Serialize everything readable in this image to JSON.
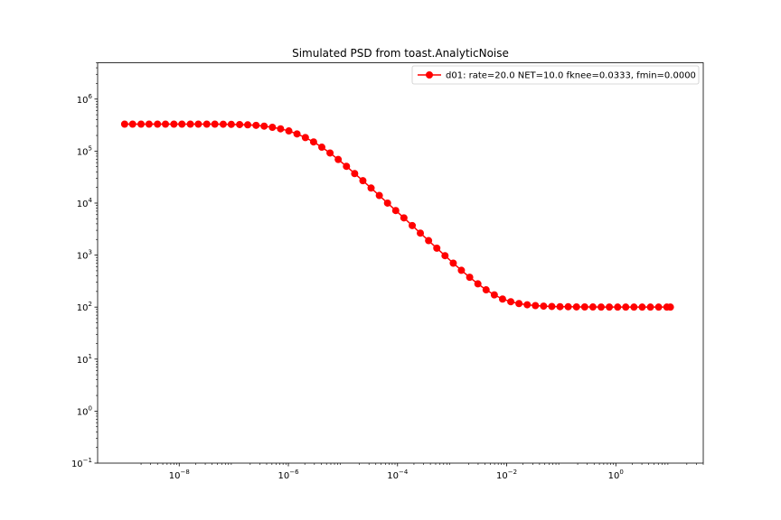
{
  "chart_data": {
    "type": "line",
    "title": "Simulated PSD from toast.AnalyticNoise",
    "xlabel": "",
    "ylabel": "",
    "xscale": "log",
    "yscale": "log",
    "xlim": [
      3.2e-10,
      40
    ],
    "ylim": [
      0.1,
      5000000
    ],
    "x_ticks": [
      {
        "value": 1e-08,
        "base": "10",
        "exp": "−8"
      },
      {
        "value": 1e-06,
        "base": "10",
        "exp": "−6"
      },
      {
        "value": 0.0001,
        "base": "10",
        "exp": "−4"
      },
      {
        "value": 0.01,
        "base": "10",
        "exp": "−2"
      },
      {
        "value": 1,
        "base": "10",
        "exp": "0"
      }
    ],
    "y_ticks": [
      {
        "value": 0.1,
        "base": "10",
        "exp": "−1"
      },
      {
        "value": 1,
        "base": "10",
        "exp": "0"
      },
      {
        "value": 10,
        "base": "10",
        "exp": "1"
      },
      {
        "value": 100,
        "base": "10",
        "exp": "2"
      },
      {
        "value": 1000,
        "base": "10",
        "exp": "3"
      },
      {
        "value": 10000,
        "base": "10",
        "exp": "4"
      },
      {
        "value": 100000,
        "base": "10",
        "exp": "5"
      },
      {
        "value": 1000000,
        "base": "10",
        "exp": "6"
      }
    ],
    "legend_position": "top-right",
    "grid": false,
    "series": [
      {
        "name": "d01: rate=20.0 NET=10.0 fknee=0.0333, fmin=0.0000",
        "color": "#ff0000",
        "marker": "circle",
        "x": [
          1e-09,
          1.4e-09,
          2e-09,
          2.8e-09,
          4e-09,
          5.6e-09,
          8e-09,
          1.12e-08,
          1.6e-08,
          2.24e-08,
          3.2e-08,
          4.5e-08,
          6.4e-08,
          9e-08,
          1.28e-07,
          1.8e-07,
          2.56e-07,
          3.6e-07,
          5.1e-07,
          7.2e-07,
          1.02e-06,
          1.44e-06,
          2.05e-06,
          2.9e-06,
          4.1e-06,
          5.8e-06,
          8.2e-06,
          1.16e-05,
          1.64e-05,
          2.32e-05,
          3.28e-05,
          4.64e-05,
          6.56e-05,
          9.28e-05,
          0.000131,
          0.000186,
          0.000262,
          0.000371,
          0.000525,
          0.000742,
          0.00105,
          0.00148,
          0.0021,
          0.00297,
          0.0042,
          0.00594,
          0.0084,
          0.0119,
          0.0168,
          0.0238,
          0.0336,
          0.0475,
          0.0672,
          0.095,
          0.134,
          0.19,
          0.269,
          0.38,
          0.538,
          0.76,
          1.08,
          1.52,
          2.15,
          3.04,
          4.3,
          6.08,
          8.6,
          10
        ],
        "y": [
          330000,
          330000,
          330000,
          330000,
          330000,
          330000,
          330000,
          330000,
          330000,
          330000,
          330000,
          330000,
          329000,
          327000,
          324000,
          320000,
          313000,
          302000,
          287000,
          268000,
          244000,
          214000,
          182000,
          150000,
          119000,
          92000,
          69000,
          51000,
          37000,
          27000,
          19500,
          14000,
          10000,
          7200,
          5200,
          3700,
          2650,
          1900,
          1360,
          975,
          700,
          510,
          375,
          280,
          215,
          172,
          143,
          127,
          117,
          111,
          107,
          104.5,
          103,
          102,
          101.5,
          101,
          100.7,
          100.5,
          100.3,
          100.2,
          100.1,
          100.1,
          100,
          100,
          100,
          100,
          100,
          100
        ]
      }
    ]
  }
}
